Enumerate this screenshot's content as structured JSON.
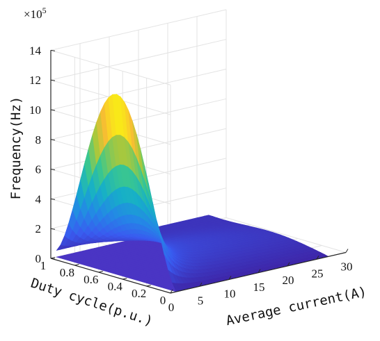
{
  "chart_data": {
    "type": "surface",
    "title": "",
    "xlabel": "Average current(A)",
    "ylabel": "Duty cycle(p.u.)",
    "zlabel": "Frequency(Hz)",
    "zscale_label": "×10",
    "zscale_exponent": "5",
    "xlim": [
      0,
      30
    ],
    "ylim": [
      0,
      1
    ],
    "zlim": [
      0,
      14
    ],
    "xticks": [
      "0",
      "5",
      "10",
      "15",
      "20",
      "25",
      "30"
    ],
    "yticks": [
      "0",
      "0.2",
      "0.4",
      "0.6",
      "0.8",
      "1"
    ],
    "zticks": [
      "0",
      "2",
      "4",
      "6",
      "8",
      "10",
      "12",
      "14"
    ],
    "grid": true,
    "colormap": "parula",
    "colors": {
      "low": "#3e26a8",
      "mid": "#17b5bd",
      "high": "#f9fb0e"
    },
    "surfaces": [
      {
        "x_range": [
          1,
          27
        ],
        "y_range": [
          0,
          1
        ],
        "description_values": "frequency in units of 1e5 Hz",
        "samples": [
          {
            "x": 1,
            "y": 1.0,
            "z": 0.45
          },
          {
            "x": 1,
            "y": 0.85,
            "z": 8.0
          },
          {
            "x": 1,
            "y": 0.5,
            "z": 11.1
          },
          {
            "x": 1,
            "y": 0.2,
            "z": 2.6
          },
          {
            "x": 10,
            "y": 0.5,
            "z": 1.6
          },
          {
            "x": 27,
            "y": 0.5,
            "z": 0.7
          },
          {
            "x": 27,
            "y": 0.0,
            "z": 0.0
          }
        ]
      },
      {
        "x_range": [
          1,
          27
        ],
        "y_range": [
          0,
          1
        ],
        "samples": [
          {
            "x": 1,
            "y": 1.0,
            "z": 0.0
          },
          {
            "x": 27,
            "y": 0.0,
            "z": 0.0
          }
        ]
      }
    ]
  }
}
